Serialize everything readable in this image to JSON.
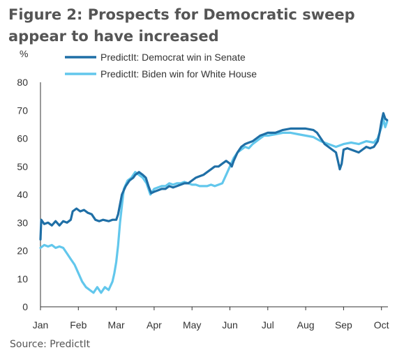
{
  "figure": {
    "title": "Figure 2: Prospects for Democratic sweep appear to have increased",
    "source": "Source: PredictIt"
  },
  "colors": {
    "senate": "#1f6fa6",
    "biden": "#62c7ec",
    "axis": "#333333"
  },
  "chart_data": {
    "type": "line",
    "ylabel": "%",
    "ylim": [
      0,
      80
    ],
    "yticks": [
      0,
      10,
      20,
      30,
      40,
      50,
      60,
      70,
      80
    ],
    "xlim": [
      0,
      9.05
    ],
    "xticks": [
      {
        "label": "Jan",
        "x": 0
      },
      {
        "label": "Feb",
        "x": 1
      },
      {
        "label": "Mar",
        "x": 2
      },
      {
        "label": "Apr",
        "x": 3
      },
      {
        "label": "May",
        "x": 4
      },
      {
        "label": "Jun",
        "x": 5
      },
      {
        "label": "Jul",
        "x": 6
      },
      {
        "label": "Aug",
        "x": 7
      },
      {
        "label": "Sep",
        "x": 8
      },
      {
        "label": "Oct",
        "x": 9
      }
    ],
    "legend": "top",
    "series": [
      {
        "name": "PredictIt: Democrat win in Senate",
        "color_key": "senate",
        "points": [
          [
            0.0,
            24
          ],
          [
            0.02,
            31
          ],
          [
            0.1,
            29.5
          ],
          [
            0.2,
            30
          ],
          [
            0.3,
            29
          ],
          [
            0.4,
            30.5
          ],
          [
            0.5,
            29
          ],
          [
            0.6,
            30.5
          ],
          [
            0.7,
            30
          ],
          [
            0.8,
            31
          ],
          [
            0.85,
            34
          ],
          [
            0.95,
            35
          ],
          [
            1.05,
            34
          ],
          [
            1.15,
            34.5
          ],
          [
            1.25,
            33.5
          ],
          [
            1.35,
            33
          ],
          [
            1.45,
            31
          ],
          [
            1.55,
            30.5
          ],
          [
            1.65,
            31
          ],
          [
            1.8,
            30.5
          ],
          [
            1.9,
            31
          ],
          [
            2.0,
            31
          ],
          [
            2.05,
            33
          ],
          [
            2.15,
            40
          ],
          [
            2.25,
            43
          ],
          [
            2.35,
            45
          ],
          [
            2.45,
            46
          ],
          [
            2.5,
            47
          ],
          [
            2.6,
            48
          ],
          [
            2.7,
            47
          ],
          [
            2.78,
            46
          ],
          [
            2.85,
            43
          ],
          [
            2.92,
            40.5
          ],
          [
            3.0,
            41
          ],
          [
            3.1,
            41.5
          ],
          [
            3.2,
            42
          ],
          [
            3.3,
            42
          ],
          [
            3.4,
            43
          ],
          [
            3.5,
            42.5
          ],
          [
            3.6,
            43
          ],
          [
            3.7,
            43.5
          ],
          [
            3.8,
            44
          ],
          [
            3.9,
            44
          ],
          [
            4.0,
            45
          ],
          [
            4.1,
            46
          ],
          [
            4.2,
            46.5
          ],
          [
            4.3,
            47
          ],
          [
            4.4,
            48
          ],
          [
            4.5,
            49
          ],
          [
            4.6,
            50
          ],
          [
            4.7,
            50
          ],
          [
            4.8,
            51
          ],
          [
            4.9,
            52
          ],
          [
            5.0,
            51
          ],
          [
            5.05,
            50
          ],
          [
            5.1,
            52
          ],
          [
            5.2,
            55
          ],
          [
            5.3,
            57
          ],
          [
            5.4,
            58
          ],
          [
            5.5,
            58.5
          ],
          [
            5.6,
            59
          ],
          [
            5.7,
            60
          ],
          [
            5.8,
            61
          ],
          [
            5.9,
            61.5
          ],
          [
            6.0,
            62
          ],
          [
            6.2,
            62
          ],
          [
            6.4,
            63
          ],
          [
            6.6,
            63.5
          ],
          [
            6.8,
            63.5
          ],
          [
            7.0,
            63.5
          ],
          [
            7.2,
            63
          ],
          [
            7.3,
            62
          ],
          [
            7.4,
            60
          ],
          [
            7.5,
            58
          ],
          [
            7.6,
            57
          ],
          [
            7.7,
            56
          ],
          [
            7.8,
            55
          ],
          [
            7.85,
            52
          ],
          [
            7.9,
            49
          ],
          [
            7.95,
            51
          ],
          [
            8.0,
            56
          ],
          [
            8.1,
            56.5
          ],
          [
            8.2,
            56
          ],
          [
            8.3,
            55.5
          ],
          [
            8.4,
            55
          ],
          [
            8.5,
            56
          ],
          [
            8.6,
            57
          ],
          [
            8.7,
            56.5
          ],
          [
            8.8,
            57
          ],
          [
            8.9,
            59
          ],
          [
            8.95,
            62
          ],
          [
            9.0,
            66
          ],
          [
            9.05,
            69
          ],
          [
            9.1,
            67
          ],
          [
            9.15,
            66.5
          ]
        ]
      },
      {
        "name": "PredictIt: Biden win for White House",
        "color_key": "biden",
        "points": [
          [
            0.0,
            21
          ],
          [
            0.1,
            22
          ],
          [
            0.2,
            21.5
          ],
          [
            0.3,
            22
          ],
          [
            0.4,
            21
          ],
          [
            0.5,
            21.5
          ],
          [
            0.6,
            21
          ],
          [
            0.7,
            19
          ],
          [
            0.8,
            17
          ],
          [
            0.9,
            15
          ],
          [
            1.0,
            12
          ],
          [
            1.1,
            9
          ],
          [
            1.2,
            7
          ],
          [
            1.3,
            6
          ],
          [
            1.4,
            5
          ],
          [
            1.5,
            7
          ],
          [
            1.6,
            5
          ],
          [
            1.7,
            7
          ],
          [
            1.8,
            6
          ],
          [
            1.9,
            9
          ],
          [
            1.95,
            12
          ],
          [
            2.0,
            16
          ],
          [
            2.05,
            22
          ],
          [
            2.1,
            30
          ],
          [
            2.15,
            36
          ],
          [
            2.2,
            42
          ],
          [
            2.3,
            45
          ],
          [
            2.4,
            46
          ],
          [
            2.5,
            48
          ],
          [
            2.6,
            47
          ],
          [
            2.7,
            46
          ],
          [
            2.8,
            44
          ],
          [
            2.9,
            40
          ],
          [
            3.0,
            42
          ],
          [
            3.1,
            42.5
          ],
          [
            3.2,
            43
          ],
          [
            3.3,
            43
          ],
          [
            3.4,
            44
          ],
          [
            3.5,
            43.5
          ],
          [
            3.6,
            44
          ],
          [
            3.7,
            44
          ],
          [
            3.8,
            44.5
          ],
          [
            3.9,
            44
          ],
          [
            4.0,
            43.5
          ],
          [
            4.1,
            43.5
          ],
          [
            4.2,
            43
          ],
          [
            4.3,
            43
          ],
          [
            4.4,
            43
          ],
          [
            4.5,
            43.5
          ],
          [
            4.6,
            43
          ],
          [
            4.7,
            43.5
          ],
          [
            4.8,
            44
          ],
          [
            4.9,
            47
          ],
          [
            5.0,
            50
          ],
          [
            5.1,
            53
          ],
          [
            5.2,
            55
          ],
          [
            5.3,
            56
          ],
          [
            5.4,
            57
          ],
          [
            5.5,
            56.5
          ],
          [
            5.6,
            58
          ],
          [
            5.7,
            59
          ],
          [
            5.8,
            60
          ],
          [
            5.9,
            61
          ],
          [
            6.0,
            61
          ],
          [
            6.2,
            61.5
          ],
          [
            6.4,
            62
          ],
          [
            6.6,
            62
          ],
          [
            6.8,
            61.5
          ],
          [
            7.0,
            61
          ],
          [
            7.2,
            60.5
          ],
          [
            7.4,
            59
          ],
          [
            7.6,
            58
          ],
          [
            7.8,
            57
          ],
          [
            8.0,
            58
          ],
          [
            8.2,
            58.5
          ],
          [
            8.4,
            58
          ],
          [
            8.6,
            59
          ],
          [
            8.8,
            58.5
          ],
          [
            8.9,
            60
          ],
          [
            9.0,
            64
          ],
          [
            9.05,
            67
          ],
          [
            9.1,
            64
          ],
          [
            9.15,
            66
          ]
        ]
      }
    ]
  }
}
